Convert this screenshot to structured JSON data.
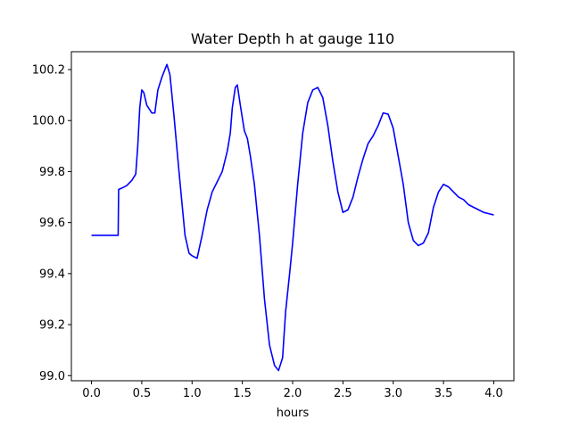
{
  "chart_data": {
    "type": "line",
    "title": "Water Depth h at gauge 110",
    "xlabel": "hours",
    "ylabel": "",
    "xlim": [
      -0.2,
      4.2
    ],
    "ylim": [
      98.98,
      100.27
    ],
    "xticks": [
      0.0,
      0.5,
      1.0,
      1.5,
      2.0,
      2.5,
      3.0,
      3.5,
      4.0
    ],
    "xtick_labels": [
      "0.0",
      "0.5",
      "1.0",
      "1.5",
      "2.0",
      "2.5",
      "3.0",
      "3.5",
      "4.0"
    ],
    "yticks": [
      99.0,
      99.2,
      99.4,
      99.6,
      99.8,
      100.0,
      100.2
    ],
    "ytick_labels": [
      "99.0",
      "99.2",
      "99.4",
      "99.6",
      "99.8",
      "100.0",
      "100.2"
    ],
    "grid": false,
    "series": [
      {
        "color": "#0000ff",
        "x": [
          0.0,
          0.265,
          0.27,
          0.3,
          0.35,
          0.4,
          0.44,
          0.46,
          0.48,
          0.5,
          0.52,
          0.55,
          0.6,
          0.63,
          0.66,
          0.7,
          0.75,
          0.78,
          0.82,
          0.87,
          0.93,
          0.97,
          1.0,
          1.05,
          1.1,
          1.15,
          1.2,
          1.25,
          1.3,
          1.35,
          1.38,
          1.4,
          1.43,
          1.45,
          1.48,
          1.52,
          1.55,
          1.58,
          1.62,
          1.67,
          1.72,
          1.77,
          1.82,
          1.86,
          1.9,
          1.93,
          1.97,
          2.0,
          2.05,
          2.1,
          2.15,
          2.2,
          2.25,
          2.3,
          2.35,
          2.4,
          2.45,
          2.5,
          2.55,
          2.6,
          2.65,
          2.7,
          2.75,
          2.8,
          2.85,
          2.9,
          2.95,
          3.0,
          3.05,
          3.1,
          3.15,
          3.2,
          3.25,
          3.3,
          3.35,
          3.4,
          3.45,
          3.5,
          3.55,
          3.6,
          3.65,
          3.7,
          3.75,
          3.8,
          3.85,
          3.9,
          3.95,
          4.0
        ],
        "y": [
          99.55,
          99.55,
          99.73,
          99.735,
          99.745,
          99.765,
          99.79,
          99.9,
          100.05,
          100.12,
          100.11,
          100.06,
          100.03,
          100.03,
          100.12,
          100.17,
          100.22,
          100.18,
          100.02,
          99.8,
          99.55,
          99.48,
          99.47,
          99.46,
          99.55,
          99.65,
          99.72,
          99.76,
          99.8,
          99.88,
          99.95,
          100.05,
          100.13,
          100.14,
          100.06,
          99.96,
          99.93,
          99.86,
          99.75,
          99.55,
          99.3,
          99.12,
          99.04,
          99.02,
          99.07,
          99.25,
          99.4,
          99.52,
          99.75,
          99.95,
          100.07,
          100.12,
          100.13,
          100.09,
          99.98,
          99.84,
          99.72,
          99.64,
          99.65,
          99.7,
          99.78,
          99.85,
          99.91,
          99.94,
          99.98,
          100.03,
          100.025,
          99.97,
          99.86,
          99.75,
          99.6,
          99.53,
          99.51,
          99.52,
          99.56,
          99.66,
          99.72,
          99.75,
          99.74,
          99.72,
          99.7,
          99.69,
          99.67,
          99.66,
          99.65,
          99.64,
          99.635,
          99.63
        ]
      }
    ]
  }
}
